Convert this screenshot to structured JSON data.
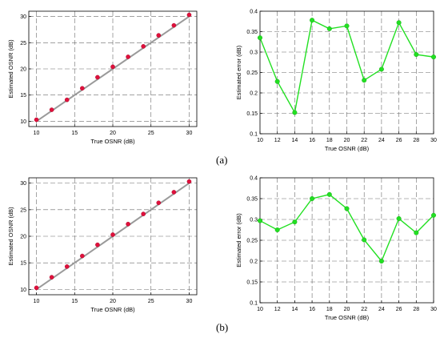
{
  "panels": [
    {
      "label": "(a)"
    },
    {
      "label": "(b)"
    }
  ],
  "style": {
    "grid_color": "#6a6a6a",
    "line_color": "#9a9a9a",
    "marker_red": "#e0103c",
    "marker_green": "#22e022",
    "axes_color": "#000000"
  },
  "chart_data": [
    {
      "panel": "(a)",
      "type": "scatter",
      "xlabel": "True OSNR (dB)",
      "ylabel": "Estimated OSNR (dB)",
      "xlim": [
        9,
        31
      ],
      "ylim": [
        9,
        31
      ],
      "xticks": [
        10,
        15,
        20,
        25,
        30
      ],
      "yticks": [
        10,
        15,
        20,
        25,
        30
      ],
      "grid": true,
      "reference_line": {
        "x": [
          10,
          30
        ],
        "y": [
          10,
          30
        ]
      },
      "x": [
        10,
        12,
        14,
        16,
        18,
        20,
        22,
        24,
        26,
        28,
        30
      ],
      "y": [
        10.3,
        12.2,
        14.1,
        16.3,
        18.4,
        20.4,
        22.3,
        24.3,
        26.4,
        28.3,
        30.3
      ]
    },
    {
      "panel": "(a)",
      "type": "line",
      "xlabel": "True OSNR (dB)",
      "ylabel": "Estimated error (dB)",
      "xlim": [
        10,
        30
      ],
      "ylim": [
        0.1,
        0.4
      ],
      "xticks": [
        10,
        12,
        14,
        16,
        18,
        20,
        22,
        24,
        26,
        28,
        30
      ],
      "yticks": [
        0.1,
        0.15,
        0.2,
        0.25,
        0.3,
        0.35,
        0.4
      ],
      "grid": true,
      "x": [
        10,
        12,
        14,
        16,
        18,
        20,
        22,
        24,
        26,
        28,
        30
      ],
      "y": [
        0.335,
        0.228,
        0.152,
        0.378,
        0.357,
        0.364,
        0.231,
        0.258,
        0.372,
        0.294,
        0.288
      ]
    },
    {
      "panel": "(b)",
      "type": "scatter",
      "xlabel": "True OSNR (dB)",
      "ylabel": "Estimated OSNR (dB)",
      "xlim": [
        9,
        31
      ],
      "ylim": [
        9,
        31
      ],
      "xticks": [
        10,
        15,
        20,
        25,
        30
      ],
      "yticks": [
        10,
        15,
        20,
        25,
        30
      ],
      "grid": true,
      "reference_line": {
        "x": [
          10,
          30
        ],
        "y": [
          10,
          30
        ]
      },
      "x": [
        10,
        12,
        14,
        16,
        18,
        20,
        22,
        24,
        26,
        28,
        30
      ],
      "y": [
        10.3,
        12.3,
        14.3,
        16.3,
        18.4,
        20.3,
        22.3,
        24.2,
        26.3,
        28.3,
        30.3
      ]
    },
    {
      "panel": "(b)",
      "type": "line",
      "xlabel": "True OSNR (dB)",
      "ylabel": "Estimated error (dB)",
      "xlim": [
        10,
        30
      ],
      "ylim": [
        0.1,
        0.4
      ],
      "xticks": [
        10,
        12,
        14,
        16,
        18,
        20,
        22,
        24,
        26,
        28,
        30
      ],
      "yticks": [
        0.1,
        0.15,
        0.2,
        0.25,
        0.3,
        0.35,
        0.4
      ],
      "grid": true,
      "x": [
        10,
        12,
        14,
        16,
        18,
        20,
        22,
        24,
        26,
        28,
        30
      ],
      "y": [
        0.297,
        0.275,
        0.294,
        0.35,
        0.36,
        0.326,
        0.251,
        0.2,
        0.302,
        0.268,
        0.31
      ]
    }
  ]
}
